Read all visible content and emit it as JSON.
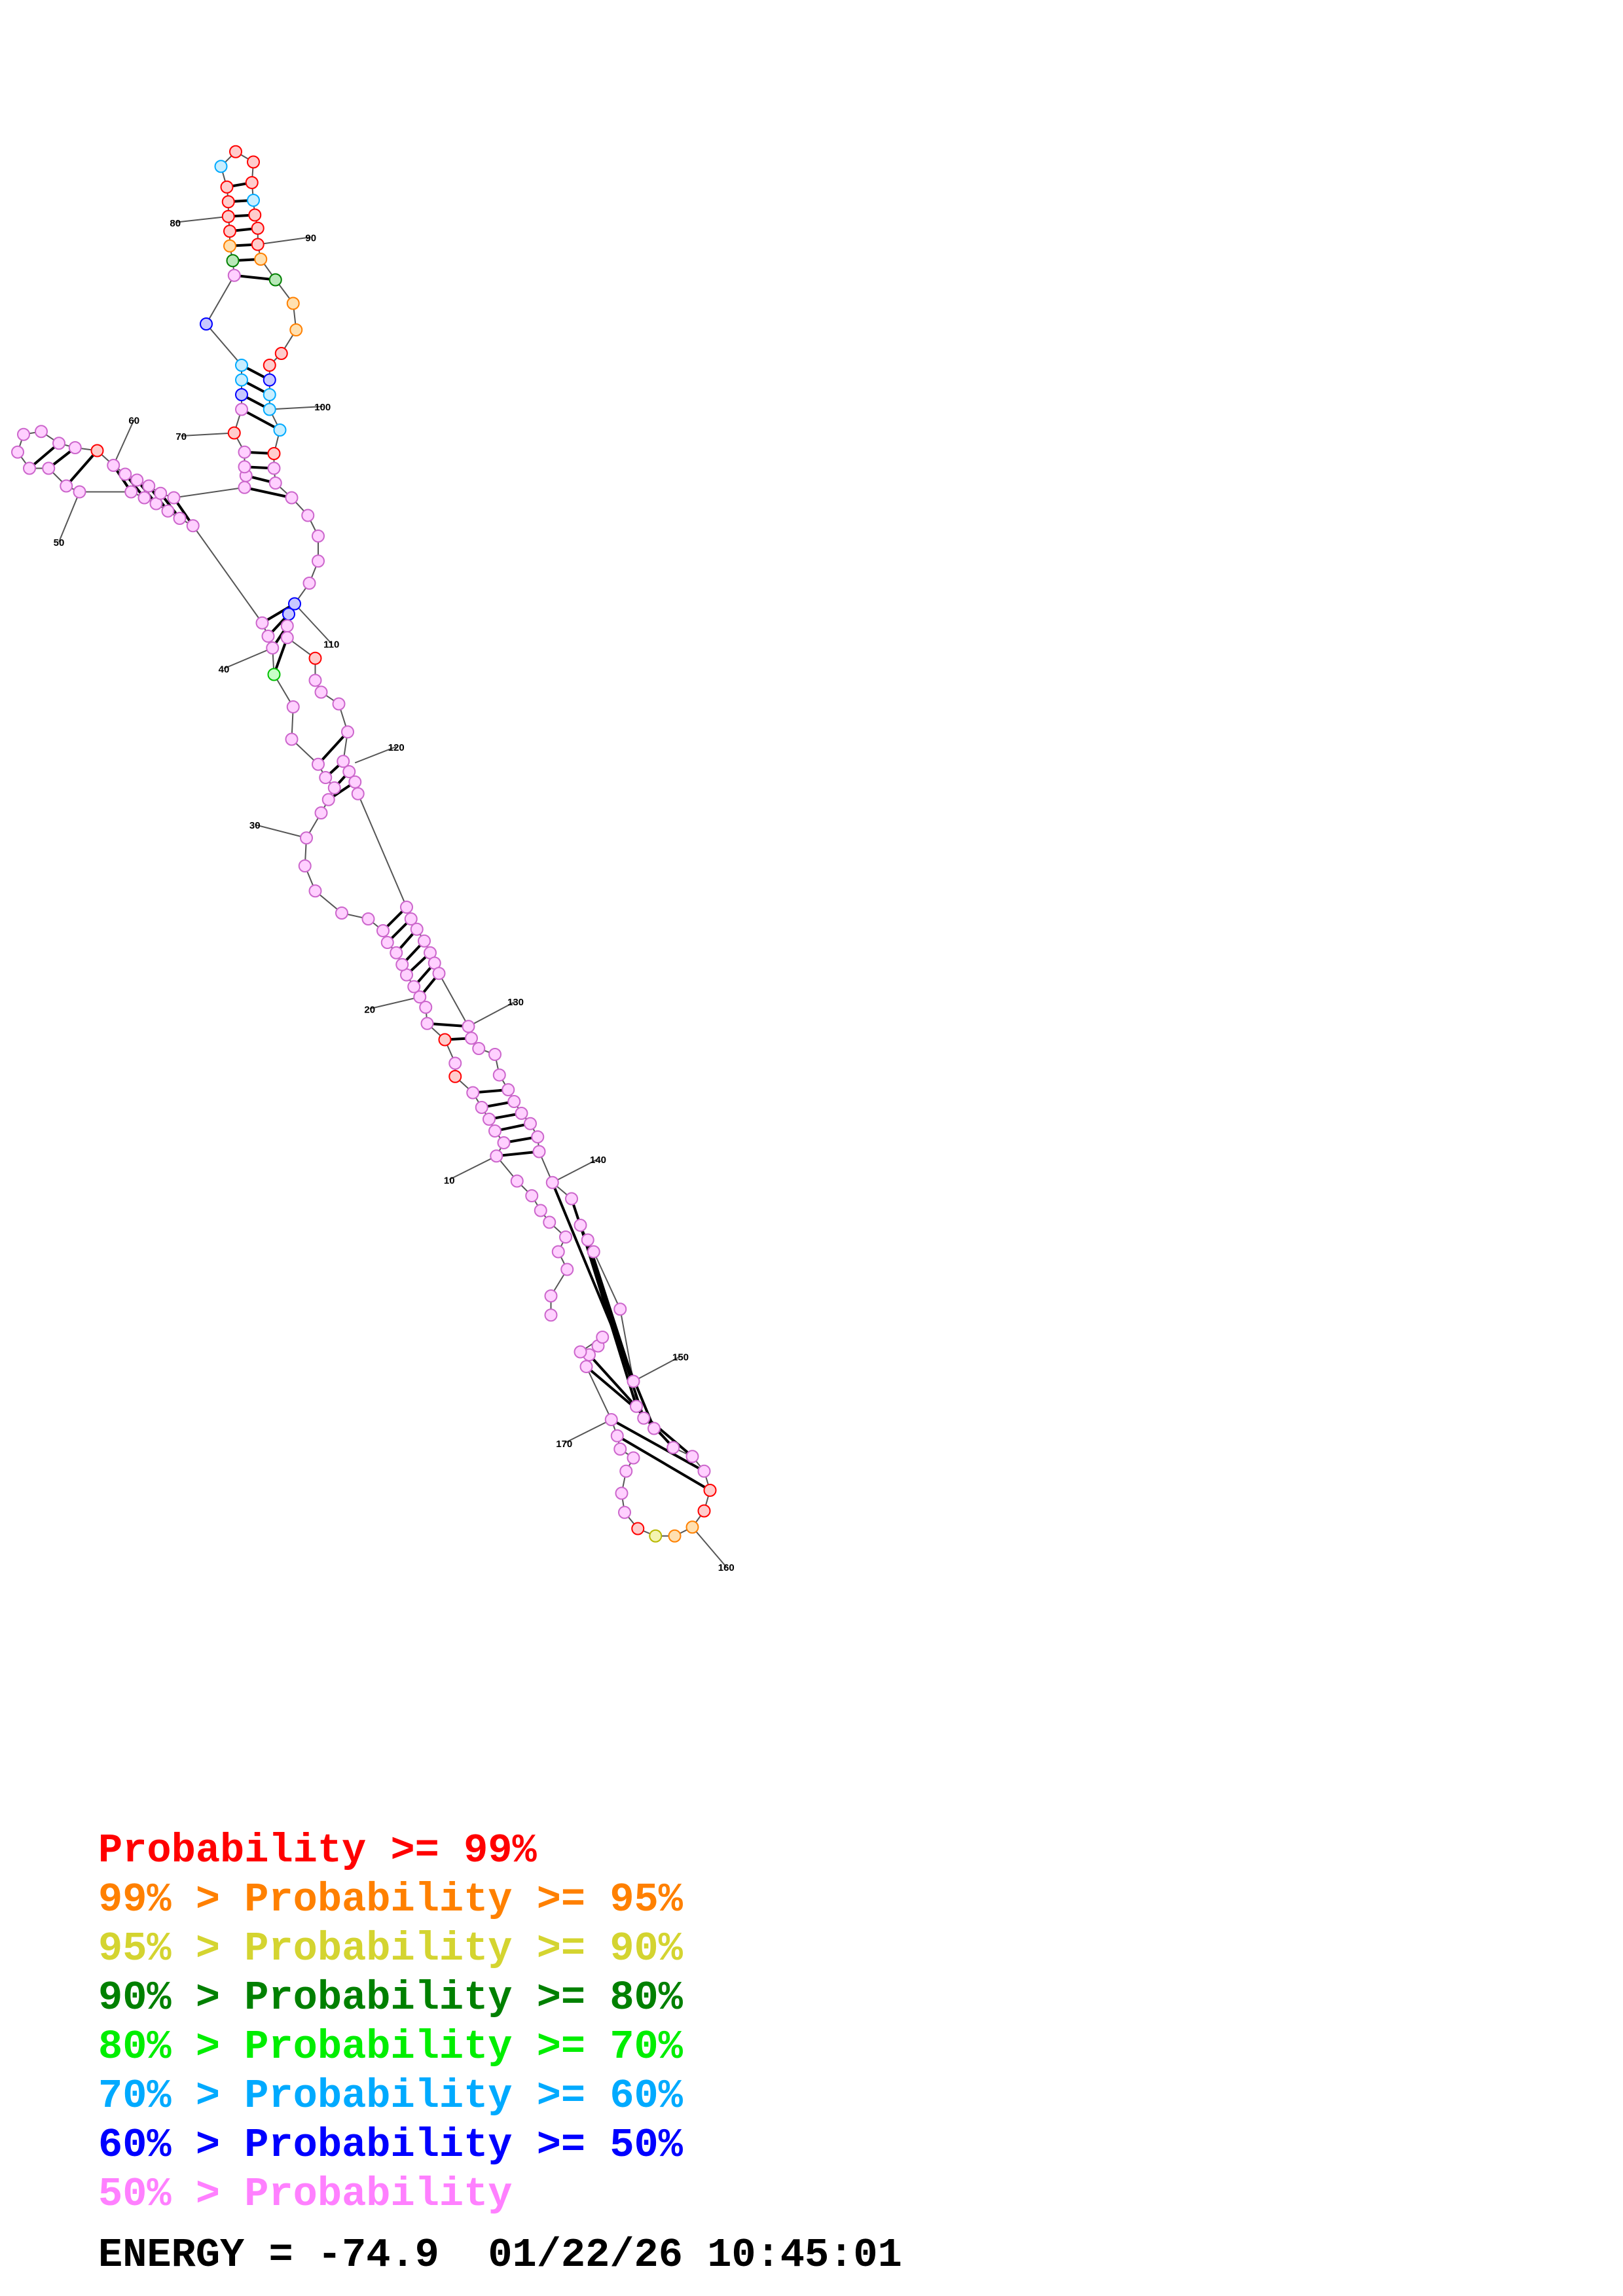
{
  "legend": [
    {
      "prefix": "",
      "label": "Probability >= 99%",
      "color": "#ff0000"
    },
    {
      "prefix": "99% > ",
      "label": "Probability >= 95%",
      "color": "#ff8000"
    },
    {
      "prefix": "95% > ",
      "label": "Probability >= 90%",
      "color": "#d4d430"
    },
    {
      "prefix": "90% > ",
      "label": "Probability >= 80%",
      "color": "#008000"
    },
    {
      "prefix": "80% > ",
      "label": "Probability >= 70%",
      "color": "#00ee00"
    },
    {
      "prefix": "70% > ",
      "label": "Probability >= 60%",
      "color": "#00aaff"
    },
    {
      "prefix": "60% > ",
      "label": "Probability >= 50%",
      "color": "#0000ff"
    },
    {
      "prefix": "50% > ",
      "label": "Probability",
      "color": "#ff80ff"
    }
  ],
  "energy": {
    "label": "ENERGY = ",
    "value": "-74.9",
    "date": "01/22/26",
    "time": "10:45:01"
  },
  "position_labels": [
    "10",
    "20",
    "30",
    "40",
    "50",
    "60",
    "70",
    "80",
    "90",
    "100",
    "110",
    "120",
    "130",
    "140",
    "150",
    "160",
    "170"
  ],
  "tiers": {
    "red": {
      "stroke": "#ff0000",
      "fill": "#ffcccc"
    },
    "orange": {
      "stroke": "#ff8000",
      "fill": "#ffe0b0"
    },
    "yellow": {
      "stroke": "#b8b800",
      "fill": "#f4f4b0"
    },
    "dkgreen": {
      "stroke": "#008000",
      "fill": "#b8e8b8"
    },
    "green": {
      "stroke": "#00c000",
      "fill": "#c8ffc8"
    },
    "cyan": {
      "stroke": "#00aaff",
      "fill": "#c8eeff"
    },
    "blue": {
      "stroke": "#0000ff",
      "fill": "#c8c8ff"
    },
    "pink": {
      "stroke": "#cc66cc",
      "fill": "#ffd0ff"
    }
  }
}
